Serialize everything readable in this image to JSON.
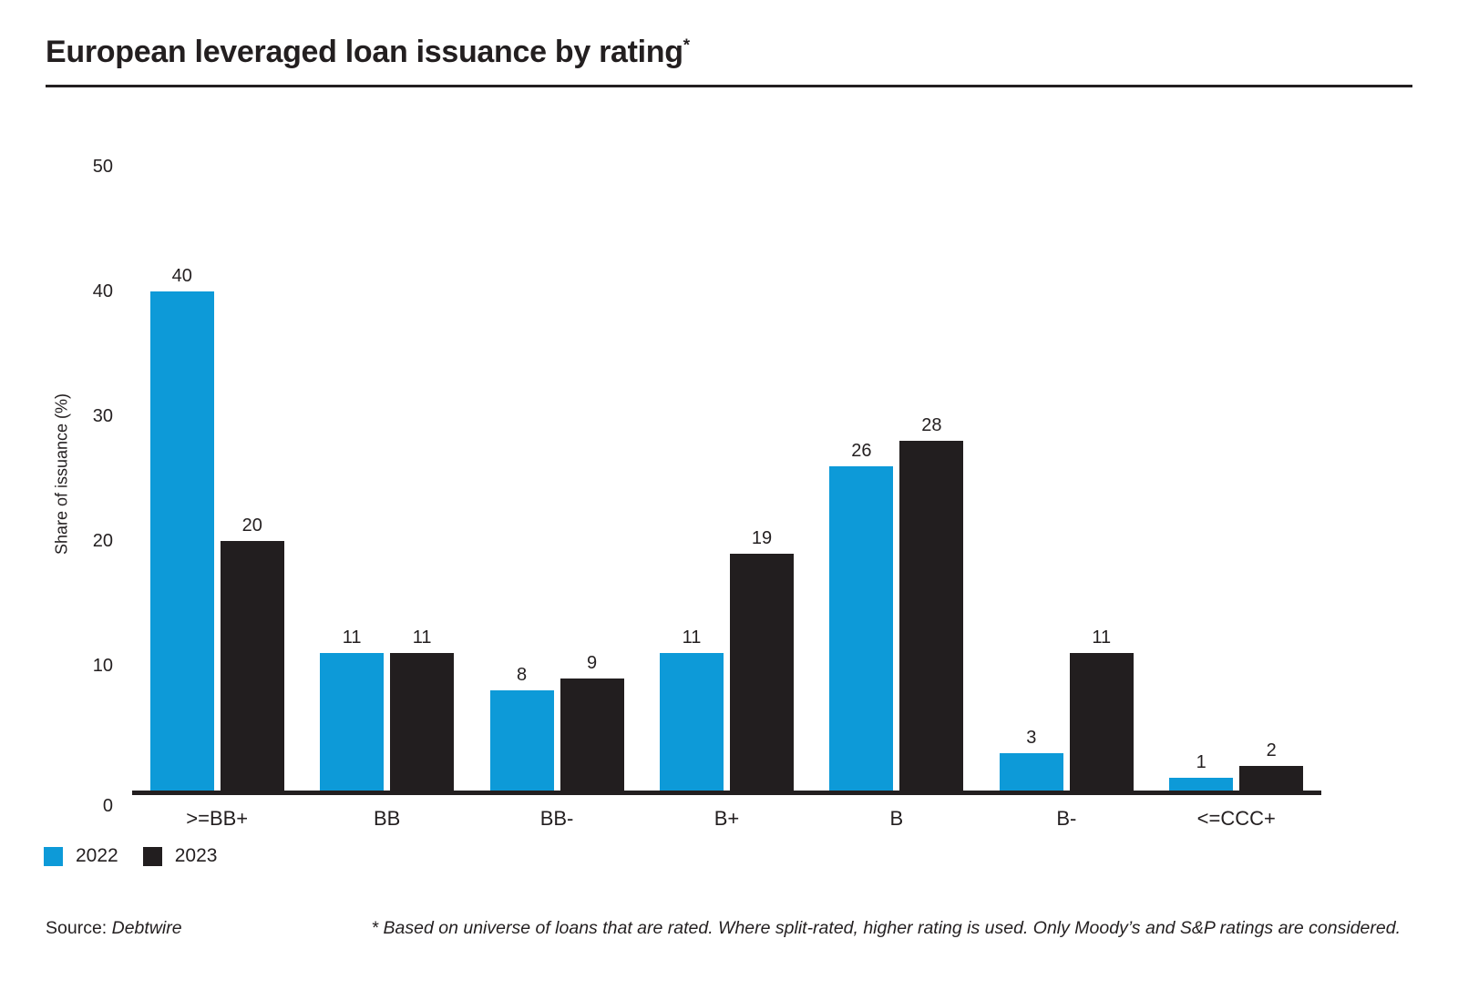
{
  "page": {
    "title": "European leveraged loan issuance by rating",
    "title_superscript": "*"
  },
  "chart_data": {
    "type": "bar",
    "title": "European leveraged loan issuance by rating*",
    "categories": [
      ">=BB+",
      "BB",
      "BB-",
      "B+",
      "B",
      "B-",
      "<=CCC+"
    ],
    "series": [
      {
        "name": "2022",
        "color": "#0d9ad8",
        "values": [
          40,
          11,
          8,
          11,
          26,
          3,
          1
        ]
      },
      {
        "name": "2023",
        "color": "#221e1f",
        "values": [
          20,
          11,
          9,
          19,
          28,
          11,
          2
        ]
      }
    ],
    "xlabel": "",
    "ylabel": "Share of issuance (%)",
    "ylim": [
      0,
      50
    ],
    "yticks": [
      0,
      10,
      20,
      30,
      40,
      50
    ],
    "grid": false,
    "value_labels": true,
    "legend_position": "bottom-left"
  },
  "footer": {
    "source_label": "Source:",
    "source_value": "Debtwire",
    "footnote": "* Based on universe of loans that are rated. Where split-rated, higher rating is used. Only Moody’s and S&P ratings are considered."
  }
}
